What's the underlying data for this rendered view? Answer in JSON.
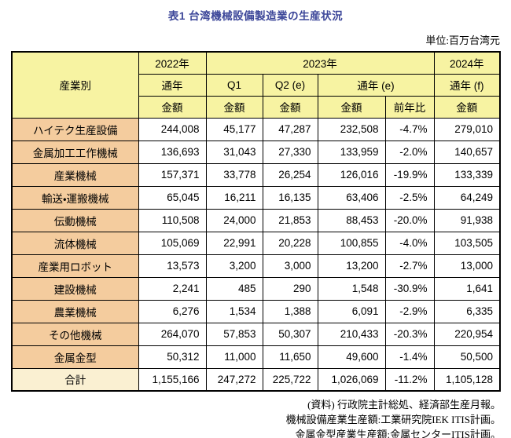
{
  "page": {
    "title": "表1 台湾機械設備製造業の生産状況",
    "unit_note": "単位:百万台湾元"
  },
  "chart_data": {
    "type": "table",
    "title": "表1 台湾機械設備製造業の生産状況",
    "unit": "百万台湾元",
    "header": {
      "industry": "産業別",
      "y2022": "2022年",
      "y2023": "2023年",
      "y2024": "2024年",
      "full_year_2022": "通年",
      "q1": "Q1",
      "q2e": "Q2 (e)",
      "full_year_2023e": "通年 (e)",
      "full_year_2024f": "通年 (f)",
      "amount": "金額",
      "yoy": "前年比"
    },
    "column_keys": [
      "2022-full-year-amount",
      "2023-q1-amount",
      "2023-q2e-amount",
      "2023-full-year-e-amount",
      "2023-full-year-e-yoy",
      "2024-full-year-f-amount"
    ],
    "rows": [
      {
        "label": "ハイテク生産設備",
        "values": [
          "244,008",
          "45,177",
          "47,287",
          "232,508",
          "-4.7%",
          "279,010"
        ],
        "total": false
      },
      {
        "label": "金属加工工作機械",
        "values": [
          "136,693",
          "31,043",
          "27,330",
          "133,959",
          "-2.0%",
          "140,657"
        ],
        "total": false
      },
      {
        "label": "産業機械",
        "values": [
          "157,371",
          "33,778",
          "26,254",
          "126,016",
          "-19.9%",
          "133,339"
        ],
        "total": false
      },
      {
        "label": "輸送・運搬機械",
        "values": [
          "65,045",
          "16,211",
          "16,135",
          "63,406",
          "-2.5%",
          "64,249"
        ],
        "total": false
      },
      {
        "label": "伝動機械",
        "values": [
          "110,508",
          "24,000",
          "21,853",
          "88,453",
          "-20.0%",
          "91,938"
        ],
        "total": false
      },
      {
        "label": "流体機械",
        "values": [
          "105,069",
          "22,991",
          "20,228",
          "100,855",
          "-4.0%",
          "103,505"
        ],
        "total": false
      },
      {
        "label": "産業用ロボット",
        "values": [
          "13,573",
          "3,200",
          "3,000",
          "13,200",
          "-2.7%",
          "13,000"
        ],
        "total": false
      },
      {
        "label": "建設機械",
        "values": [
          "2,241",
          "485",
          "290",
          "1,548",
          "-30.9%",
          "1,641"
        ],
        "total": false
      },
      {
        "label": "農業機械",
        "values": [
          "6,276",
          "1,534",
          "1,388",
          "6,091",
          "-2.9%",
          "6,335"
        ],
        "total": false
      },
      {
        "label": "その他機械",
        "values": [
          "264,070",
          "57,853",
          "50,307",
          "210,433",
          "-20.3%",
          "220,954"
        ],
        "total": false
      },
      {
        "label": "金属金型",
        "values": [
          "50,312",
          "11,000",
          "11,650",
          "49,600",
          "-1.4%",
          "50,500"
        ],
        "total": false
      },
      {
        "label": "合計",
        "values": [
          "1,155,166",
          "247,272",
          "225,722",
          "1,026,069",
          "-11.2%",
          "1,105,128"
        ],
        "total": true
      }
    ]
  },
  "footnotes": [
    "(資料) 行政院主計総処、経済部生産月報。",
    "機械設備産業生産額:工業研究院IEK ITIS計画。",
    "金属金型産業生産額:金属センターITIS計画。"
  ],
  "colors": {
    "header_bg": "#f7f3a2",
    "row_label_bg": "#f4cc9e",
    "total_label_bg": "#faf0d2",
    "title_text": "#3c4699",
    "border": "#000000",
    "cell_bg": "#ffffff"
  }
}
